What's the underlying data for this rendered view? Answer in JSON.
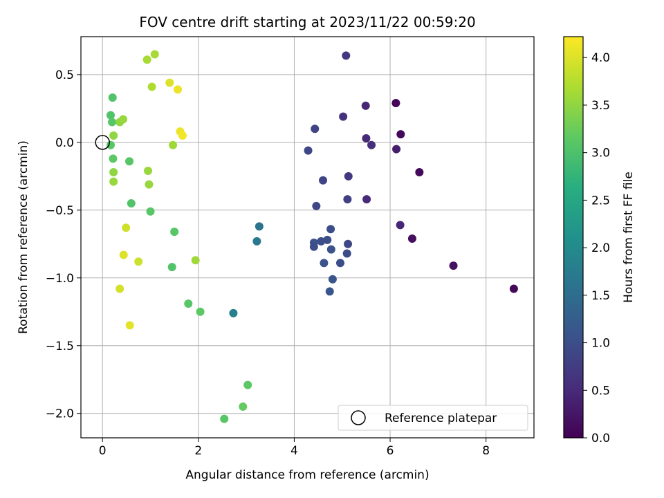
{
  "chart_data": {
    "type": "scatter",
    "title": "FOV centre drift starting at 2023/11/22 00:59:20",
    "xlabel": "Angular distance from reference (arcmin)",
    "ylabel": "Rotation from reference (arcmin)",
    "xlim": [
      -0.45,
      9.0
    ],
    "ylim": [
      -2.18,
      0.78
    ],
    "xticks": [
      0,
      2,
      4,
      6,
      8
    ],
    "xtick_labels": [
      "0",
      "2",
      "4",
      "6",
      "8"
    ],
    "yticks": [
      0.5,
      0.0,
      -0.5,
      -1.0,
      -1.5,
      -2.0
    ],
    "ytick_labels": [
      "0.5",
      "0.0",
      "−0.5",
      "−1.0",
      "−1.5",
      "−2.0"
    ],
    "grid": true,
    "colormap": "viridis",
    "colorbar": {
      "label": "Hours from first FF file",
      "range": [
        0.0,
        4.22
      ],
      "ticks": [
        0.0,
        0.5,
        1.0,
        1.5,
        2.0,
        2.5,
        3.0,
        3.5,
        4.0
      ],
      "tick_labels": [
        "0.0",
        "0.5",
        "1.0",
        "1.5",
        "2.0",
        "2.5",
        "3.0",
        "3.5",
        "4.0"
      ]
    },
    "legend": {
      "placement": "lower-right",
      "entries": [
        {
          "label": "Reference platepar",
          "marker": "open-circle",
          "color": "#000000"
        }
      ]
    },
    "reference_point": {
      "x": 0,
      "y": 0
    },
    "points": [
      {
        "x": 6.12,
        "y": 0.29,
        "t": 0.05
      },
      {
        "x": 6.22,
        "y": 0.06,
        "t": 0.1
      },
      {
        "x": 6.61,
        "y": -0.22,
        "t": 0.1
      },
      {
        "x": 6.46,
        "y": -0.71,
        "t": 0.15
      },
      {
        "x": 7.32,
        "y": -0.91,
        "t": 0.2
      },
      {
        "x": 8.58,
        "y": -1.08,
        "t": 0.1
      },
      {
        "x": 6.13,
        "y": -0.05,
        "t": 0.35
      },
      {
        "x": 6.21,
        "y": -0.61,
        "t": 0.45
      },
      {
        "x": 5.49,
        "y": 0.27,
        "t": 0.45
      },
      {
        "x": 5.5,
        "y": 0.03,
        "t": 0.5
      },
      {
        "x": 5.61,
        "y": -0.02,
        "t": 0.55
      },
      {
        "x": 5.51,
        "y": -0.42,
        "t": 0.5
      },
      {
        "x": 5.02,
        "y": 0.19,
        "t": 0.6
      },
      {
        "x": 5.08,
        "y": 0.64,
        "t": 0.65
      },
      {
        "x": 5.13,
        "y": -0.25,
        "t": 0.7
      },
      {
        "x": 5.11,
        "y": -0.42,
        "t": 0.8
      },
      {
        "x": 4.6,
        "y": -0.28,
        "t": 0.85
      },
      {
        "x": 4.43,
        "y": 0.1,
        "t": 0.85
      },
      {
        "x": 4.29,
        "y": -0.06,
        "t": 0.9
      },
      {
        "x": 4.46,
        "y": -0.47,
        "t": 0.9
      },
      {
        "x": 5.12,
        "y": -0.75,
        "t": 0.9
      },
      {
        "x": 5.1,
        "y": -0.82,
        "t": 0.95
      },
      {
        "x": 4.76,
        "y": -0.64,
        "t": 1.0
      },
      {
        "x": 4.69,
        "y": -0.72,
        "t": 1.0
      },
      {
        "x": 4.56,
        "y": -0.73,
        "t": 1.0
      },
      {
        "x": 4.41,
        "y": -0.74,
        "t": 1.05
      },
      {
        "x": 4.41,
        "y": -0.77,
        "t": 1.0
      },
      {
        "x": 4.77,
        "y": -0.79,
        "t": 1.05
      },
      {
        "x": 4.62,
        "y": -0.89,
        "t": 1.05
      },
      {
        "x": 4.96,
        "y": -0.89,
        "t": 1.0
      },
      {
        "x": 4.8,
        "y": -1.01,
        "t": 1.1
      },
      {
        "x": 4.74,
        "y": -1.1,
        "t": 1.1
      },
      {
        "x": 3.27,
        "y": -0.62,
        "t": 1.6
      },
      {
        "x": 3.22,
        "y": -0.73,
        "t": 1.7
      },
      {
        "x": 2.73,
        "y": -1.26,
        "t": 1.8
      },
      {
        "x": 0.21,
        "y": 0.33,
        "t": 3.05
      },
      {
        "x": 0.17,
        "y": 0.2,
        "t": 3.05
      },
      {
        "x": 0.2,
        "y": 0.15,
        "t": 3.1
      },
      {
        "x": 0.17,
        "y": -0.02,
        "t": 3.1
      },
      {
        "x": 0.22,
        "y": -0.12,
        "t": 3.15
      },
      {
        "x": 0.56,
        "y": -0.14,
        "t": 3.1
      },
      {
        "x": 0.6,
        "y": -0.45,
        "t": 3.05
      },
      {
        "x": 1.0,
        "y": -0.51,
        "t": 3.1
      },
      {
        "x": 1.5,
        "y": -0.66,
        "t": 3.1
      },
      {
        "x": 1.45,
        "y": -0.92,
        "t": 3.05
      },
      {
        "x": 1.79,
        "y": -1.19,
        "t": 3.1
      },
      {
        "x": 2.04,
        "y": -1.25,
        "t": 3.15
      },
      {
        "x": 2.54,
        "y": -2.04,
        "t": 3.1
      },
      {
        "x": 3.03,
        "y": -1.79,
        "t": 3.15
      },
      {
        "x": 2.93,
        "y": -1.95,
        "t": 3.2
      },
      {
        "x": 0.23,
        "y": 0.05,
        "t": 3.5
      },
      {
        "x": 0.36,
        "y": 0.15,
        "t": 3.5
      },
      {
        "x": 0.43,
        "y": 0.17,
        "t": 3.55
      },
      {
        "x": 0.23,
        "y": -0.22,
        "t": 3.5
      },
      {
        "x": 0.23,
        "y": -0.29,
        "t": 3.55
      },
      {
        "x": 0.95,
        "y": -0.21,
        "t": 3.55
      },
      {
        "x": 0.97,
        "y": -0.31,
        "t": 3.55
      },
      {
        "x": 1.47,
        "y": -0.02,
        "t": 3.6
      },
      {
        "x": 1.94,
        "y": -0.87,
        "t": 3.6
      },
      {
        "x": 0.93,
        "y": 0.61,
        "t": 3.65
      },
      {
        "x": 1.09,
        "y": 0.65,
        "t": 3.65
      },
      {
        "x": 1.03,
        "y": 0.41,
        "t": 3.7
      },
      {
        "x": 1.4,
        "y": 0.44,
        "t": 4.0
      },
      {
        "x": 1.57,
        "y": 0.39,
        "t": 4.1
      },
      {
        "x": 1.62,
        "y": 0.08,
        "t": 4.1
      },
      {
        "x": 1.67,
        "y": 0.05,
        "t": 4.15
      },
      {
        "x": 0.49,
        "y": -0.63,
        "t": 3.9
      },
      {
        "x": 0.44,
        "y": -0.83,
        "t": 4.0
      },
      {
        "x": 0.75,
        "y": -0.88,
        "t": 3.9
      },
      {
        "x": 0.36,
        "y": -1.08,
        "t": 3.95
      },
      {
        "x": 0.57,
        "y": -1.35,
        "t": 4.05
      }
    ]
  }
}
